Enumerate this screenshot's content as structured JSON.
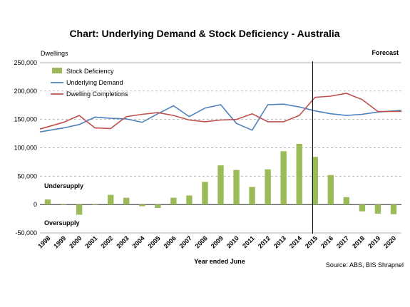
{
  "colors": {
    "bars": "#9bbb59",
    "demand": "#4f81bd",
    "completions": "#c0504d",
    "grid": "#999999",
    "forecast_line": "#000000"
  },
  "chart_data": {
    "type": "bar",
    "title": "Chart: Underlying Demand & Stock Deficiency - Australia",
    "ylabel": "Dwellings",
    "xlabel": "Year ended June",
    "source": "Source: ABS, BIS Shrapnel",
    "forecast_label": "Forecast",
    "forecast_from": "2015",
    "annotations": {
      "undersupply": "Undersupply",
      "oversupply": "Oversupply"
    },
    "ylim": [
      -50000,
      250000
    ],
    "yticks": [
      -50000,
      0,
      50000,
      100000,
      150000,
      200000,
      250000
    ],
    "ytick_labels": [
      "-50,000",
      "0",
      "50,000",
      "100,000",
      "150,000",
      "200,000",
      "250,000"
    ],
    "grid": true,
    "legend_position": "top-left",
    "categories": [
      "1998",
      "1999",
      "2000",
      "2001",
      "2002",
      "2003",
      "2004",
      "2005",
      "2006",
      "2007",
      "2008",
      "2009",
      "2010",
      "2011",
      "2012",
      "2013",
      "2014",
      "2015",
      "2016",
      "2017",
      "2018",
      "2019",
      "2020"
    ],
    "series": [
      {
        "name": "Stock Deficiency",
        "type": "bar",
        "values": [
          9000,
          -1000,
          -18000,
          0,
          17000,
          12000,
          -3000,
          -6000,
          12000,
          16000,
          40000,
          69000,
          61000,
          31000,
          62000,
          94000,
          107000,
          84000,
          52000,
          13000,
          -12000,
          -16000,
          -17000
        ]
      },
      {
        "name": "Underlying Demand",
        "type": "line",
        "values": [
          128000,
          135000,
          141000,
          154000,
          152000,
          151000,
          145000,
          160000,
          174000,
          155000,
          170000,
          176000,
          143000,
          131000,
          176000,
          177000,
          172000,
          165000,
          160000,
          157000,
          159000,
          163000,
          166000
        ]
      },
      {
        "name": "Dwelling Completions",
        "type": "line",
        "values": [
          133000,
          145000,
          157000,
          135000,
          134000,
          155000,
          159000,
          162000,
          157000,
          149000,
          146000,
          149000,
          150000,
          160000,
          146000,
          146000,
          157000,
          189000,
          191000,
          196000,
          185000,
          164000,
          164000
        ]
      }
    ]
  }
}
